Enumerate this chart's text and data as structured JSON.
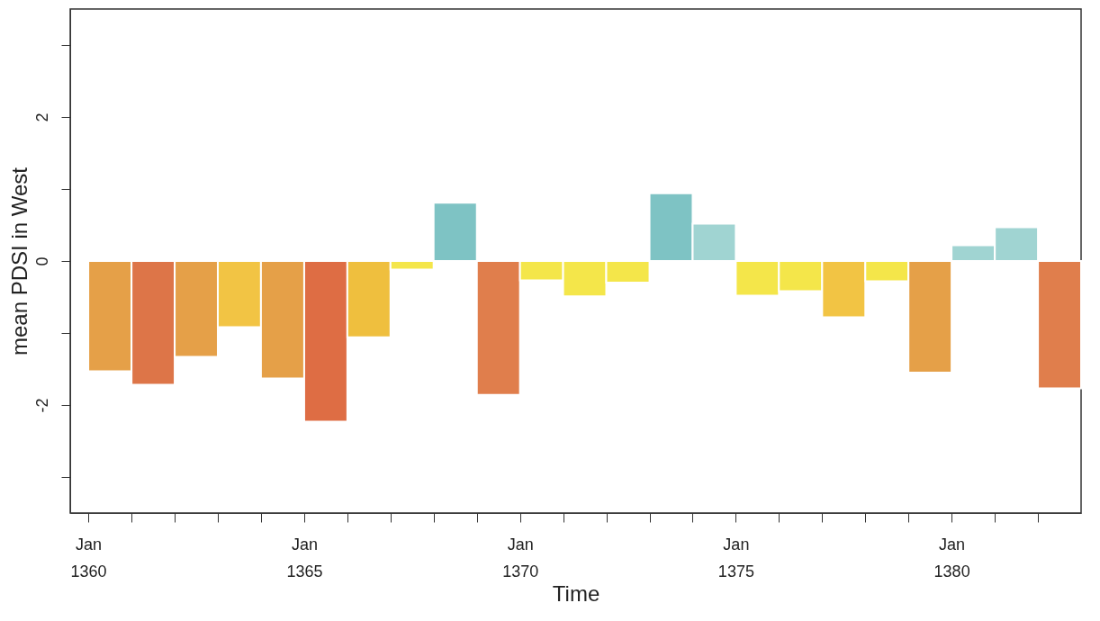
{
  "chart_data": {
    "type": "bar",
    "xlabel": "Time",
    "ylabel": "mean PDSI in West",
    "x": [
      "1360-07",
      "1361-07",
      "1362-07",
      "1363-07",
      "1364-07",
      "1365-07",
      "1366-07",
      "1367-07",
      "1368-07",
      "1369-07",
      "1370-07",
      "1371-07",
      "1372-07",
      "1373-07",
      "1374-07",
      "1375-07",
      "1376-07",
      "1377-07",
      "1378-07",
      "1379-07",
      "1380-07",
      "1381-07",
      "1382-07"
    ],
    "values": [
      -1.53,
      -1.72,
      -1.33,
      -0.92,
      -1.63,
      -2.23,
      -1.06,
      -0.12,
      0.81,
      -1.86,
      -0.27,
      -0.49,
      -0.3,
      0.94,
      0.52,
      -0.48,
      -0.42,
      -0.78,
      -0.28,
      -1.55,
      0.22,
      0.47,
      -1.77
    ],
    "colors": [
      "#e5a048",
      "#dd7548",
      "#e5a048",
      "#f2c444",
      "#e5a048",
      "#de6d44",
      "#efbf3e",
      "#f4e64a",
      "#7ec3c4",
      "#e07e4c",
      "#f4e64a",
      "#f4e64a",
      "#f4e64a",
      "#7ec3c4",
      "#a0d4d2",
      "#f4e64a",
      "#f4e64a",
      "#f2c444",
      "#f4e64a",
      "#e5a048",
      "#a0d4d2",
      "#a0d4d2",
      "#e07e4c"
    ],
    "ylim": [
      -3.5,
      3.5
    ],
    "yticks": [
      {
        "value": -3,
        "label": null
      },
      -2,
      {
        "value": -1,
        "label": null
      },
      0,
      {
        "value": 1,
        "label": null
      },
      2,
      {
        "value": 3,
        "label": null
      }
    ],
    "xlim": [
      "1359-08",
      "1383-01"
    ],
    "xticks": [
      {
        "value": "1360-01",
        "label": "Jan 1360"
      },
      {
        "value": "1361-01",
        "label": null
      },
      {
        "value": "1362-01",
        "label": null
      },
      {
        "value": "1363-01",
        "label": null
      },
      {
        "value": "1364-01",
        "label": null
      },
      {
        "value": "1365-01",
        "label": "Jan 1365"
      },
      {
        "value": "1366-01",
        "label": null
      },
      {
        "value": "1367-01",
        "label": null
      },
      {
        "value": "1368-01",
        "label": null
      },
      {
        "value": "1369-01",
        "label": null
      },
      {
        "value": "1370-01",
        "label": "Jan 1370"
      },
      {
        "value": "1371-01",
        "label": null
      },
      {
        "value": "1372-01",
        "label": null
      },
      {
        "value": "1373-01",
        "label": null
      },
      {
        "value": "1374-01",
        "label": null
      },
      {
        "value": "1375-01",
        "label": "Jan 1375"
      },
      {
        "value": "1376-01",
        "label": null
      },
      {
        "value": "1377-01",
        "label": null
      },
      {
        "value": "1378-01",
        "label": null
      },
      {
        "value": "1379-01",
        "label": null
      },
      {
        "value": "1380-01",
        "label": "Jan 1380"
      },
      {
        "value": "1381-01",
        "label": null
      },
      {
        "value": "1382-01",
        "label": null
      }
    ],
    "grid": false
  }
}
